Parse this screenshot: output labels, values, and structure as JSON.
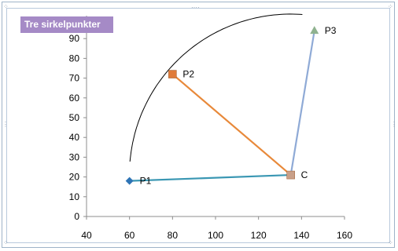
{
  "chart_data": {
    "type": "scatter",
    "title": "Tre sirkelpunkter",
    "xlabel": "",
    "ylabel": "",
    "xlim": [
      40,
      160
    ],
    "ylim": [
      0,
      100
    ],
    "xticks": [
      40,
      60,
      80,
      100,
      120,
      140,
      160
    ],
    "yticks": [
      0,
      10,
      20,
      30,
      40,
      50,
      60,
      70,
      80,
      90
    ],
    "grid": false,
    "legend": false,
    "points": [
      {
        "label": "P1",
        "x": 60,
        "y": 18,
        "marker": "diamond",
        "color": "#2e74b5"
      },
      {
        "label": "P2",
        "x": 80,
        "y": 72,
        "marker": "square",
        "color": "#e07b39"
      },
      {
        "label": "P3",
        "x": 146,
        "y": 94,
        "marker": "triangle",
        "color": "#8fb28f"
      },
      {
        "label": "C",
        "x": 135,
        "y": 21,
        "marker": "square",
        "color": "#c9a089"
      }
    ],
    "segments": [
      {
        "from": "P1",
        "to": "C",
        "color": "#3a97b3"
      },
      {
        "from": "P2",
        "to": "C",
        "color": "#e8893a"
      },
      {
        "from": "P3",
        "to": "C",
        "color": "#8faad6"
      }
    ],
    "arc": {
      "center": "C",
      "through": "P1",
      "from": "P1",
      "to": "P3",
      "color": "#000000"
    }
  }
}
